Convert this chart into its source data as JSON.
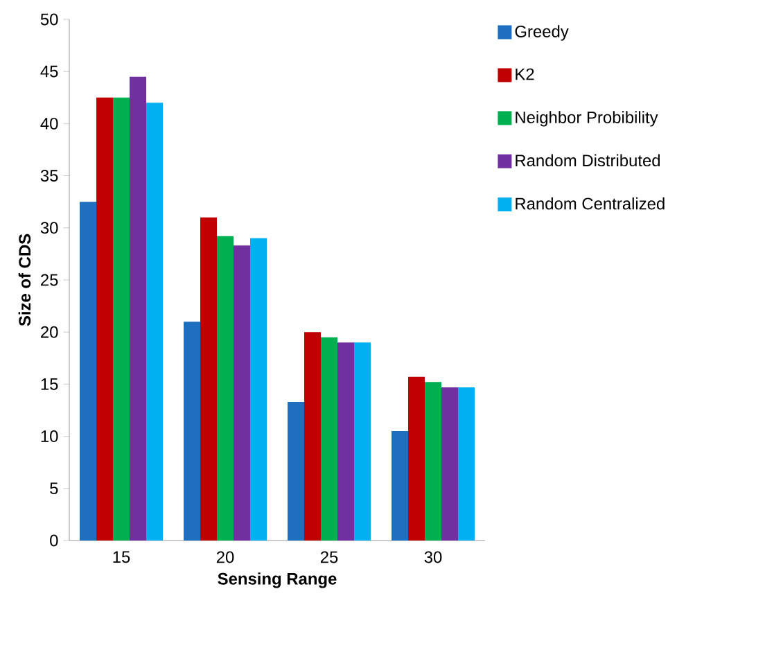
{
  "chart_data": {
    "type": "bar",
    "xlabel": "Sensing Range",
    "ylabel": "Size of CDS",
    "categories": [
      "15",
      "20",
      "25",
      "30"
    ],
    "series": [
      {
        "name": "Greedy",
        "color": "#1f6fc0",
        "values": [
          32.5,
          21,
          13.3,
          10.5
        ]
      },
      {
        "name": "K2",
        "color": "#c00000",
        "values": [
          42.5,
          31,
          20,
          15.7
        ]
      },
      {
        "name": "Neighbor Probibility",
        "color": "#00b050",
        "values": [
          42.5,
          29.2,
          19.5,
          15.2
        ]
      },
      {
        "name": "Random Distributed",
        "color": "#7030a0",
        "values": [
          44.5,
          28.3,
          19,
          14.7
        ]
      },
      {
        "name": "Random Centralized",
        "color": "#00b0f0",
        "values": [
          42,
          29,
          19,
          14.7
        ]
      }
    ],
    "ylim": [
      0,
      50
    ],
    "yticks": [
      0,
      5,
      10,
      15,
      20,
      25,
      30,
      35,
      40,
      45,
      50
    ],
    "grid": false,
    "legend": "top right"
  }
}
